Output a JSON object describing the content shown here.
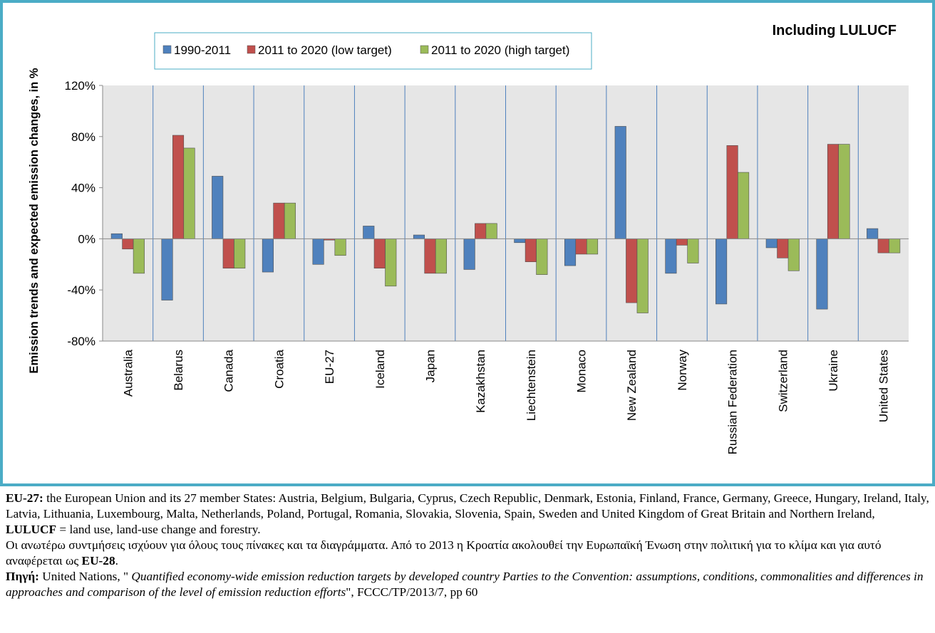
{
  "chart_data": {
    "type": "bar",
    "title": "Including LULUCF",
    "ylabel": "Emission trends and expected emission changes, in %",
    "xlabel": "",
    "ylim": [
      -80,
      120
    ],
    "yticks": [
      -80,
      -40,
      0,
      40,
      80,
      120
    ],
    "ytick_labels": [
      "-80%",
      "-40%",
      "0%",
      "40%",
      "80%",
      "120%"
    ],
    "legend_position": "top",
    "grid": false,
    "categories": [
      "Australia",
      "Belarus",
      "Canada",
      "Croatia",
      "EU-27",
      "Iceland",
      "Japan",
      "Kazakhstan",
      "Liechtenstein",
      "Monaco",
      "New Zealand",
      "Norway",
      "Russian Federation",
      "Switzerland",
      "Ukraine",
      "United States"
    ],
    "series": [
      {
        "name": "1990-2011",
        "color": "#4f81bd",
        "values": [
          4,
          -48,
          49,
          -26,
          -20,
          10,
          3,
          -24,
          -3,
          -21,
          88,
          -27,
          -51,
          -7,
          -55,
          8
        ]
      },
      {
        "name": "2011 to 2020 (low target)",
        "color": "#c0504d",
        "values": [
          -8,
          81,
          -23,
          28,
          -1,
          -23,
          -27,
          12,
          -18,
          -12,
          -50,
          -5,
          73,
          -15,
          74,
          -11
        ]
      },
      {
        "name": "2011 to 2020 (high target)",
        "color": "#9bbb59",
        "values": [
          -27,
          71,
          -23,
          28,
          -13,
          -37,
          -27,
          12,
          -28,
          -12,
          -58,
          -19,
          52,
          -25,
          74,
          -11
        ]
      }
    ]
  },
  "notes": {
    "eu27_label": "EU-27:",
    "eu27_text": " the European Union and its 27 member States: Austria, Belgium, Bulgaria, Cyprus, Czech Republic, Denmark, Estonia, Finland, France, Germany, Greece, Hungary, Ireland, Italy, Latvia, Lithuania, Luxembourg, Malta, Netherlands, Poland, Portugal, Romania, Slovakia, Slovenia, Spain, Sweden and United Kingdom of Great Britain and Northern Ireland,",
    "lulucf_label": "LULUCF",
    "lulucf_text": " = land use, land-use change and forestry.",
    "greek_text": "Οι ανωτέρω συντμήσεις ισχύουν για όλους τους πίνακες και τα διαγράμματα. Από το 2013 η Κροατία ακολουθεί την Ευρωπαϊκή Ένωση στην πολιτική για το κλίμα και για αυτό αναφέρεται ως ",
    "eu28_label": "EU-28",
    "greek_end": ".",
    "source_label": "Πηγή:",
    "source_prefix": " United Nations, \" ",
    "source_title": "Quantified economy-wide emission reduction targets by developed country Parties to the Convention: assumptions, conditions, commonalities and differences in approaches and comparison of the level of emission reduction efforts",
    "source_suffix": "\", FCCC/TP/2013/7, pp 60"
  }
}
